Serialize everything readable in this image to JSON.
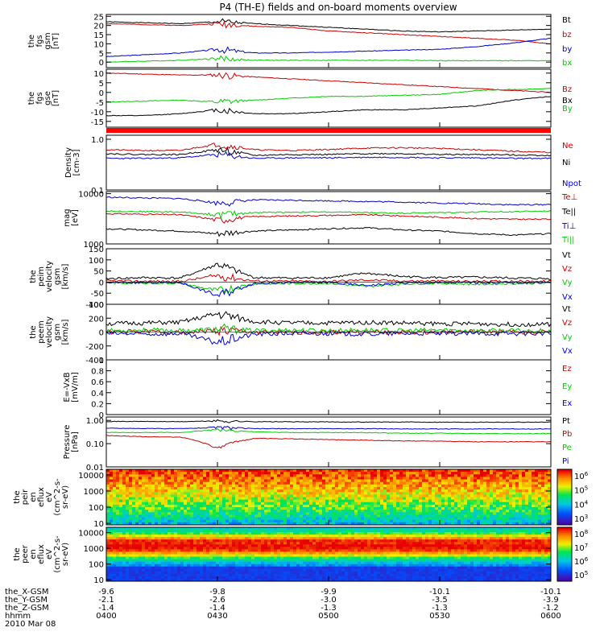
{
  "title": "P4 (TH-E) fields and on-board moments overview",
  "chart_data": [
    {
      "panel": "fgs_gsm",
      "type": "line",
      "ylabel": [
        "the",
        "fgs",
        "gsm",
        "[nT]"
      ],
      "ylim": [
        -3,
        26
      ],
      "yticks": [
        0,
        5,
        10,
        15,
        20,
        25
      ],
      "series": [
        {
          "name": "Bt",
          "color": "#000000",
          "values": [
            22,
            21.5,
            21,
            22,
            21,
            20,
            19,
            18,
            17,
            16.5,
            17,
            17.5,
            18
          ]
        },
        {
          "name": "bz",
          "color": "#cc0000",
          "values": [
            21,
            20.5,
            20,
            21,
            19.5,
            19,
            17,
            16,
            15,
            14,
            13,
            12,
            10
          ]
        },
        {
          "name": "by",
          "color": "#0000cc",
          "values": [
            3,
            4,
            5,
            7,
            5,
            5,
            5.5,
            6,
            6.5,
            7,
            8.5,
            10.5,
            13
          ]
        },
        {
          "name": "bx",
          "color": "#00cc00",
          "values": [
            0,
            0.5,
            1,
            2,
            1,
            1,
            1,
            1,
            1,
            0.8,
            0.8,
            0.8,
            0.8
          ]
        }
      ]
    },
    {
      "panel": "fgs_gse",
      "type": "line",
      "ylabel": [
        "the",
        "fgs",
        "gse",
        "[nT]"
      ],
      "ylim": [
        -18,
        12
      ],
      "yticks": [
        10,
        5,
        0,
        -5,
        -10,
        -15
      ],
      "series": [
        {
          "name": "Bz",
          "color": "#cc0000",
          "values": [
            10,
            9.5,
            9,
            9,
            8,
            7,
            6,
            5,
            4,
            3,
            2,
            1,
            0
          ]
        },
        {
          "name": "Bx",
          "color": "#000000",
          "values": [
            -12,
            -12,
            -11,
            -9,
            -11,
            -11,
            -10,
            -9,
            -9,
            -8,
            -7,
            -4,
            -2
          ]
        },
        {
          "name": "By",
          "color": "#00cc00",
          "values": [
            -5,
            -4.5,
            -4,
            -5,
            -4,
            -3,
            -2,
            -2,
            -1.5,
            -1,
            1,
            1.5,
            2
          ]
        }
      ]
    },
    {
      "panel": "density",
      "type": "line",
      "log": true,
      "ylabel": [
        "Density",
        "[cm-3]"
      ],
      "ylim": [
        0.1,
        1.2
      ],
      "yticks": [
        1.0,
        0.1
      ],
      "yticklabels": [
        "1.0",
        "0.1"
      ],
      "series": [
        {
          "name": "Ne",
          "color": "#cc0000",
          "values": [
            0.62,
            0.6,
            0.6,
            0.8,
            0.62,
            0.6,
            0.63,
            0.67,
            0.68,
            0.66,
            0.62,
            0.58,
            0.55
          ]
        },
        {
          "name": "Ni",
          "color": "#000000",
          "values": [
            0.52,
            0.5,
            0.5,
            0.62,
            0.48,
            0.5,
            0.5,
            0.52,
            0.52,
            0.5,
            0.5,
            0.49,
            0.48
          ]
        },
        {
          "name": "Npot",
          "color": "#0000cc",
          "values": [
            0.42,
            0.42,
            0.43,
            0.5,
            0.42,
            0.43,
            0.43,
            0.44,
            0.44,
            0.43,
            0.43,
            0.42,
            0.42
          ]
        }
      ]
    },
    {
      "panel": "temperature",
      "type": "line",
      "log": true,
      "ylabel": [
        "mag",
        "[eV]"
      ],
      "ylim": [
        1000,
        11000
      ],
      "yticks": [
        10000,
        1000
      ],
      "yticklabels": [
        "10000",
        "1000"
      ],
      "series": [
        {
          "name": "Te⊥",
          "color": "#cc0000",
          "values": [
            4000,
            3900,
            3800,
            3000,
            3500,
            3600,
            3700,
            3800,
            3600,
            3400,
            3200,
            3100,
            3100
          ]
        },
        {
          "name": "Te||",
          "color": "#000000",
          "values": [
            2000,
            1900,
            1800,
            1600,
            1800,
            1900,
            2000,
            2100,
            1900,
            1800,
            1600,
            1500,
            1600
          ]
        },
        {
          "name": "Ti⊥",
          "color": "#0000cc",
          "values": [
            8500,
            8200,
            8000,
            6500,
            7500,
            7400,
            7200,
            7000,
            6800,
            6500,
            6300,
            6000,
            6100
          ]
        },
        {
          "name": "Ti||",
          "color": "#00cc00",
          "values": [
            4500,
            4400,
            4300,
            3800,
            4200,
            4300,
            4300,
            4200,
            4100,
            4200,
            4300,
            4400,
            4500
          ]
        }
      ]
    },
    {
      "panel": "peim_velocity",
      "type": "line",
      "ylabel": [
        "the",
        "peim",
        "velocity",
        "gsm",
        "[km/s]"
      ],
      "ylim": [
        -100,
        150
      ],
      "yticks": [
        150,
        100,
        50,
        0,
        -50,
        -100
      ],
      "series": [
        {
          "name": "Vt",
          "color": "#000000",
          "values": [
            15,
            20,
            18,
            80,
            20,
            18,
            20,
            40,
            25,
            20,
            22,
            18,
            15
          ]
        },
        {
          "name": "Vz",
          "color": "#cc0000",
          "values": [
            5,
            4,
            3,
            30,
            5,
            4,
            3,
            10,
            5,
            4,
            3,
            4,
            3
          ]
        },
        {
          "name": "Vy",
          "color": "#00cc00",
          "values": [
            -5,
            -4,
            -5,
            -40,
            -8,
            -6,
            -5,
            -20,
            -8,
            -5,
            -10,
            -6,
            -5
          ]
        },
        {
          "name": "Vx",
          "color": "#0000cc",
          "values": [
            -2,
            -3,
            -2,
            -60,
            -5,
            -3,
            -2,
            -15,
            -4,
            -3,
            -2,
            -3,
            -2
          ]
        }
      ]
    },
    {
      "panel": "peem_velocity",
      "type": "line",
      "ylabel": [
        "the",
        "peem",
        "velocity",
        "gsm",
        "[km/s]"
      ],
      "ylim": [
        -400,
        400
      ],
      "yticks": [
        400,
        200,
        0,
        -200,
        -400
      ],
      "series": [
        {
          "name": "Vt",
          "color": "#000000",
          "values": [
            120,
            130,
            140,
            260,
            150,
            130,
            130,
            140,
            130,
            120,
            120,
            110,
            110
          ]
        },
        {
          "name": "Vz",
          "color": "#cc0000",
          "values": [
            0,
            10,
            -10,
            20,
            0,
            -10,
            5,
            0,
            -5,
            0,
            5,
            0,
            0
          ]
        },
        {
          "name": "Vy",
          "color": "#00cc00",
          "values": [
            20,
            30,
            20,
            40,
            20,
            30,
            20,
            30,
            20,
            30,
            20,
            20,
            20
          ]
        },
        {
          "name": "Vx",
          "color": "#0000cc",
          "values": [
            -20,
            -30,
            -20,
            -150,
            -30,
            -20,
            -20,
            -30,
            -20,
            -20,
            -20,
            -20,
            -20
          ]
        }
      ]
    },
    {
      "panel": "efield",
      "type": "line",
      "ylabel": [
        "E=-VxB",
        "[mV/m]"
      ],
      "ylim": [
        0,
        1.0
      ],
      "yticks": [
        1.0,
        0.8,
        0.6,
        0.4,
        0.2,
        0.0
      ],
      "series": [
        {
          "name": "Ez",
          "color": "#cc0000",
          "values": []
        },
        {
          "name": "Ey",
          "color": "#00cc00",
          "values": []
        },
        {
          "name": "Ex",
          "color": "#0000cc",
          "values": []
        }
      ]
    },
    {
      "panel": "pressure",
      "type": "line",
      "log": true,
      "ylabel": [
        "Pressure",
        "[nPa]"
      ],
      "ylim": [
        0.01,
        1.4
      ],
      "yticks": [
        1.0,
        0.1,
        0.01
      ],
      "yticklabels": [
        "1.00",
        "0.10",
        "0.01"
      ],
      "series": [
        {
          "name": "Pt",
          "color": "#000000",
          "values": [
            0.9,
            0.9,
            0.88,
            0.95,
            0.88,
            0.87,
            0.86,
            0.85,
            0.85,
            0.84,
            0.84,
            0.84,
            0.84
          ]
        },
        {
          "name": "Pb",
          "color": "#cc0000",
          "values": [
            0.22,
            0.2,
            0.19,
            0.06,
            0.17,
            0.16,
            0.15,
            0.14,
            0.13,
            0.13,
            0.12,
            0.12,
            0.12
          ]
        },
        {
          "name": "Pe",
          "color": "#00cc00",
          "values": [
            0.3,
            0.3,
            0.3,
            0.4,
            0.32,
            0.3,
            0.3,
            0.3,
            0.28,
            0.28,
            0.27,
            0.27,
            0.27
          ]
        },
        {
          "name": "Pi",
          "color": "#0000cc",
          "values": [
            0.46,
            0.45,
            0.44,
            0.5,
            0.44,
            0.44,
            0.44,
            0.44,
            0.43,
            0.43,
            0.43,
            0.43,
            0.43
          ]
        }
      ]
    },
    {
      "panel": "peir_eflux",
      "type": "heatmap",
      "ylabel": [
        "the",
        "peir",
        "en",
        "eflux",
        "eV",
        "(cm^2-s-",
        "sr-eV)"
      ],
      "yticks": [
        10000,
        1000,
        100,
        10
      ],
      "colorbar": {
        "ticks": [
          "10^3",
          "10^4",
          "10^5",
          "10^6"
        ]
      }
    },
    {
      "panel": "peer_eflux",
      "type": "heatmap",
      "ylabel": [
        "the",
        "peer",
        "en",
        "eflux",
        "eV",
        "(cm^2-s-",
        "sr-eV)"
      ],
      "yticks": [
        10000,
        1000,
        100,
        10
      ],
      "colorbar": {
        "ticks": [
          "10^5",
          "10^6",
          "10^7",
          "10^8"
        ]
      }
    }
  ],
  "xaxis": {
    "rows": [
      {
        "label": "the_X-GSM",
        "values": [
          "-9.6",
          "-9.8",
          "-9.9",
          "-10.1",
          "-10.1"
        ]
      },
      {
        "label": "the_Y-GSM",
        "values": [
          "-2.1",
          "-2.6",
          "-3.0",
          "-3.5",
          "-3.9"
        ]
      },
      {
        "label": "the_Z-GSM",
        "values": [
          "-1.4",
          "-1.4",
          "-1.3",
          "-1.3",
          "-1.2"
        ]
      },
      {
        "label": "hhmm",
        "values": [
          "0400",
          "0430",
          "0500",
          "0530",
          "0600"
        ]
      }
    ],
    "date": "2010 Mar 08"
  },
  "colors": {
    "red": "#cc0000",
    "green": "#00cc00",
    "blue": "#0000cc",
    "black": "#000000"
  }
}
